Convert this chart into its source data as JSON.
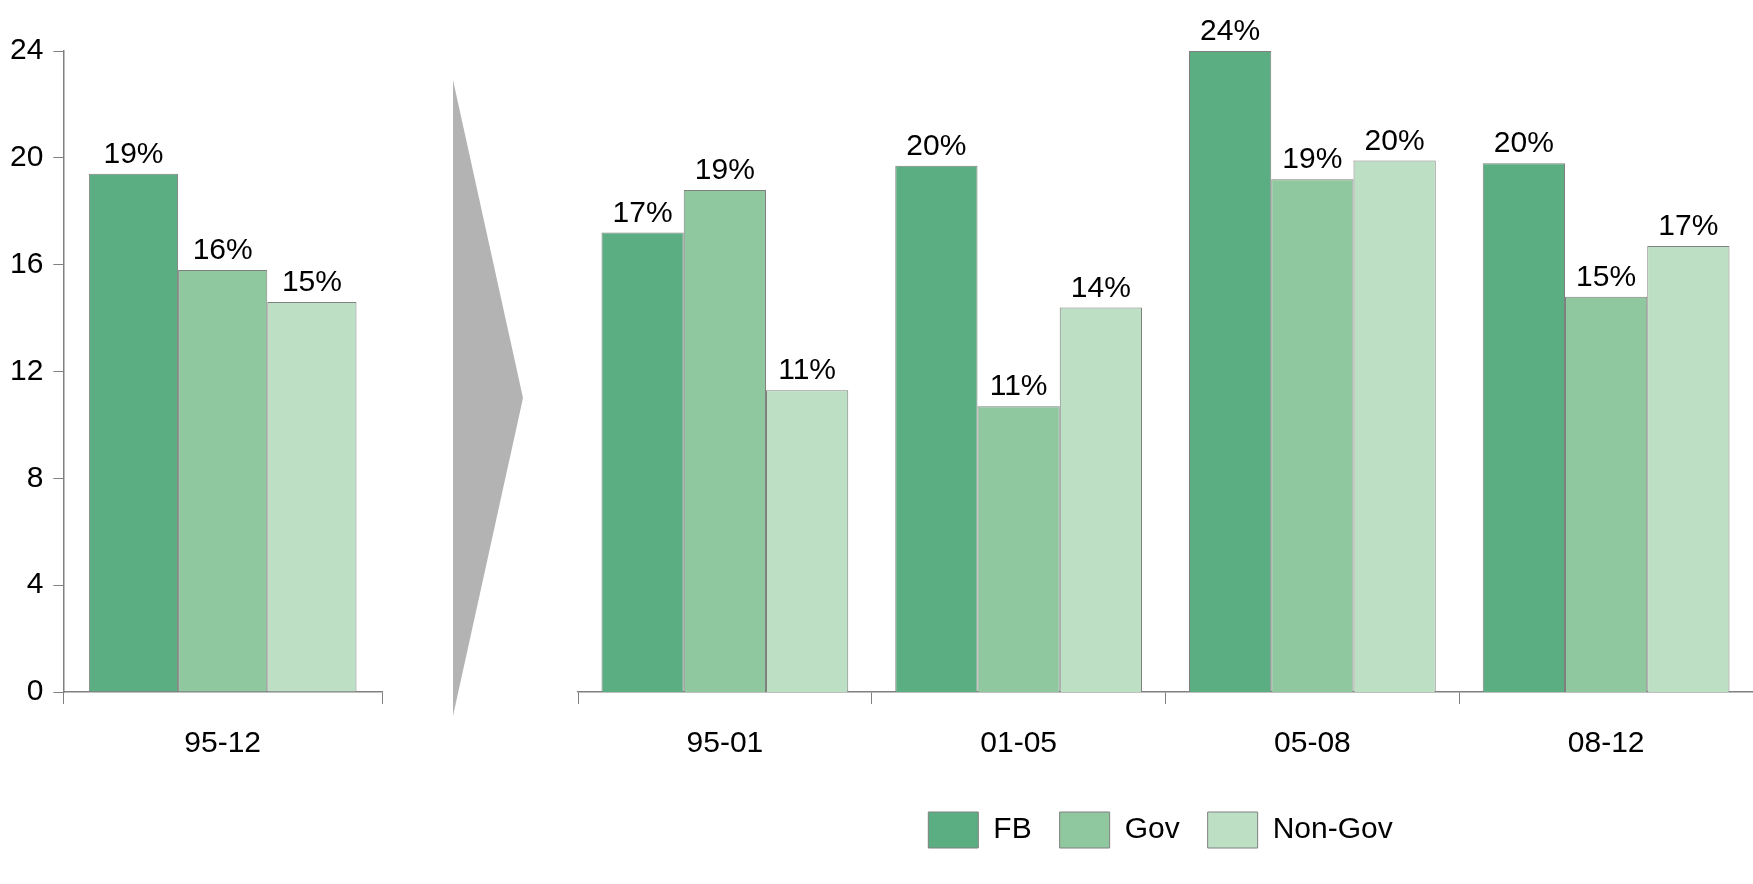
{
  "chart_data": [
    {
      "type": "bar",
      "categories": [
        "95-12"
      ],
      "ylim": [
        0,
        24
      ],
      "yticks": [
        0,
        4,
        8,
        12,
        16,
        20,
        24
      ],
      "series": [
        {
          "color": "#5bae82",
          "values": [
            19.4
          ],
          "value_labels": [
            "19%"
          ]
        },
        {
          "color": "#8fc79f",
          "values": [
            15.8
          ],
          "value_labels": [
            "16%"
          ]
        },
        {
          "color": "#bde0c5",
          "values": [
            14.6
          ],
          "value_labels": [
            "15%"
          ]
        }
      ]
    },
    {
      "type": "bar",
      "categories": [
        "95-01",
        "01-05",
        "05-08",
        "08-12"
      ],
      "ylim": [
        0,
        24
      ],
      "yticks": [
        0,
        4,
        8,
        12,
        16,
        20,
        24
      ],
      "tick_labels": "x",
      "legend": "bottom",
      "series": [
        {
          "name": "FB",
          "color": "#5bae82",
          "values": [
            17.2,
            19.7,
            24.0,
            19.8
          ],
          "value_labels": [
            "17%",
            "20%",
            "24%",
            "20%"
          ]
        },
        {
          "name": "Gov",
          "color": "#8fc79f",
          "values": [
            18.8,
            10.7,
            19.2,
            14.8
          ],
          "value_labels": [
            "19%",
            "11%",
            "19%",
            "15%"
          ]
        },
        {
          "name": "Non-Gov",
          "color": "#bde0c5",
          "values": [
            11.3,
            14.4,
            19.9,
            16.7
          ],
          "value_labels": [
            "11%",
            "14%",
            "20%",
            "17%"
          ]
        }
      ]
    }
  ]
}
